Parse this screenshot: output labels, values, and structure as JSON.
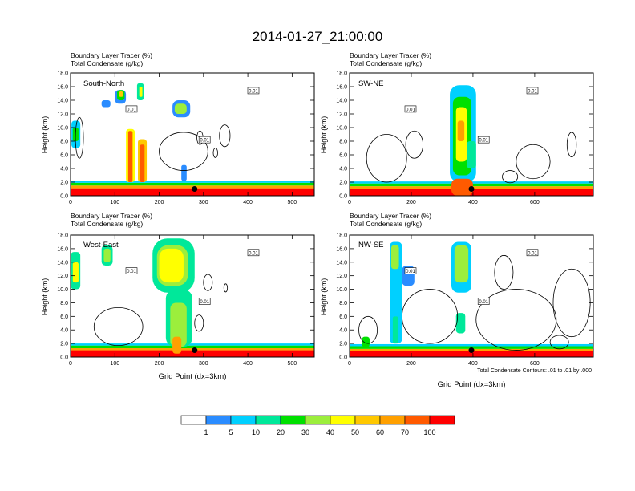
{
  "title": "2014-01-27_21:00:00",
  "colors": {
    "levels": [
      "#ffffff",
      "#2a8cff",
      "#00d0ff",
      "#00e89a",
      "#00e000",
      "#9cee3c",
      "#ffff00",
      "#ffc800",
      "#ffa000",
      "#ff5a00",
      "#ff0000"
    ]
  },
  "chart_data": [
    {
      "type": "heatmap",
      "name": "South-North",
      "label_line1": "Boundary Layer Tracer   (%)",
      "label_line2": "Total Condensate   (g/kg)",
      "ylabel": "Height (km)",
      "xlabel": "",
      "xlim": [
        0,
        550
      ],
      "ylim": [
        0,
        18
      ],
      "xticks": [
        0,
        100,
        200,
        300,
        400,
        500
      ],
      "yticks": [
        0,
        2,
        4,
        6,
        8,
        10,
        12,
        14,
        16,
        18
      ],
      "contour_label": "0.01",
      "marker": {
        "x": 280,
        "y": 1
      },
      "blobs": [
        {
          "x": [
            0,
            550
          ],
          "y": [
            0,
            1.1
          ],
          "level": 10
        },
        {
          "x": [
            0,
            550
          ],
          "y": [
            1.1,
            1.5
          ],
          "level": 8
        },
        {
          "x": [
            0,
            550
          ],
          "y": [
            1.5,
            1.9
          ],
          "level": 4
        },
        {
          "x": [
            0,
            550
          ],
          "y": [
            1.9,
            2.2
          ],
          "level": 2
        },
        {
          "x": [
            2,
            22
          ],
          "y": [
            7,
            11
          ],
          "level": 2
        },
        {
          "x": [
            5,
            18
          ],
          "y": [
            8,
            10
          ],
          "level": 4
        },
        {
          "x": [
            100,
            125
          ],
          "y": [
            13.5,
            15.5
          ],
          "level": 1
        },
        {
          "x": [
            105,
            122
          ],
          "y": [
            14,
            15.5
          ],
          "level": 4
        },
        {
          "x": [
            110,
            118
          ],
          "y": [
            14.5,
            15.3
          ],
          "level": 7
        },
        {
          "x": [
            150,
            165
          ],
          "y": [
            14,
            16.5
          ],
          "level": 3
        },
        {
          "x": [
            155,
            162
          ],
          "y": [
            14.5,
            16
          ],
          "level": 6
        },
        {
          "x": [
            70,
            90
          ],
          "y": [
            13,
            14
          ],
          "level": 1
        },
        {
          "x": [
            125,
            145
          ],
          "y": [
            2,
            9.8
          ],
          "level": 6
        },
        {
          "x": [
            130,
            140
          ],
          "y": [
            2,
            9.5
          ],
          "level": 9
        },
        {
          "x": [
            152,
            172
          ],
          "y": [
            2,
            8.3
          ],
          "level": 7
        },
        {
          "x": [
            157,
            167
          ],
          "y": [
            2,
            7.5
          ],
          "level": 9
        },
        {
          "x": [
            230,
            270
          ],
          "y": [
            11.5,
            14
          ],
          "level": 1
        },
        {
          "x": [
            235,
            262
          ],
          "y": [
            12,
            13.5
          ],
          "level": 5
        },
        {
          "x": [
            250,
            262
          ],
          "y": [
            2.2,
            4.5
          ],
          "level": 1
        }
      ],
      "outlines": [
        {
          "cx": 255,
          "cy": 6.5,
          "rx": 55,
          "ry": 2.8
        },
        {
          "cx": 348,
          "cy": 8.8,
          "rx": 12,
          "ry": 1.6
        },
        {
          "cx": 292,
          "cy": 8.5,
          "rx": 7,
          "ry": 1.0
        },
        {
          "cx": 327,
          "cy": 6.3,
          "rx": 5,
          "ry": 0.7
        },
        {
          "cx": 20,
          "cy": 8.5,
          "rx": 9,
          "ry": 3.0
        }
      ]
    },
    {
      "type": "heatmap",
      "name": "SW-NE",
      "label_line1": "Boundary Layer Tracer   (%)",
      "label_line2": "Total Condensate   (g/kg)",
      "ylabel": "Height (km)",
      "xlabel": "",
      "xlim": [
        0,
        790
      ],
      "ylim": [
        0,
        18
      ],
      "xticks": [
        0,
        200,
        400,
        600
      ],
      "yticks": [
        0,
        2,
        4,
        6,
        8,
        10,
        12,
        14,
        16,
        18
      ],
      "contour_label": "0.01",
      "marker": {
        "x": 395,
        "y": 1
      },
      "blobs": [
        {
          "x": [
            0,
            790
          ],
          "y": [
            0,
            1.0
          ],
          "level": 10
        },
        {
          "x": [
            0,
            790
          ],
          "y": [
            1.0,
            1.4
          ],
          "level": 8
        },
        {
          "x": [
            0,
            790
          ],
          "y": [
            1.4,
            1.8
          ],
          "level": 4
        },
        {
          "x": [
            0,
            790
          ],
          "y": [
            1.8,
            2.1
          ],
          "level": 2
        },
        {
          "x": [
            325,
            410
          ],
          "y": [
            2,
            16.2
          ],
          "level": 2
        },
        {
          "x": [
            335,
            395
          ],
          "y": [
            3,
            14.5
          ],
          "level": 4
        },
        {
          "x": [
            345,
            380
          ],
          "y": [
            5,
            13
          ],
          "level": 6
        },
        {
          "x": [
            350,
            372
          ],
          "y": [
            8,
            11
          ],
          "level": 8
        },
        {
          "x": [
            330,
            400
          ],
          "y": [
            0,
            2.5
          ],
          "level": 9
        },
        {
          "x": [
            380,
            410
          ],
          "y": [
            4,
            8
          ],
          "level": 3
        }
      ],
      "outlines": [
        {
          "cx": 120,
          "cy": 5.5,
          "rx": 65,
          "ry": 3.5
        },
        {
          "cx": 210,
          "cy": 7.5,
          "rx": 28,
          "ry": 2.0
        },
        {
          "cx": 595,
          "cy": 5.0,
          "rx": 55,
          "ry": 2.5
        },
        {
          "cx": 720,
          "cy": 7.5,
          "rx": 15,
          "ry": 1.8
        },
        {
          "cx": 520,
          "cy": 2.8,
          "rx": 25,
          "ry": 0.9
        }
      ]
    },
    {
      "type": "heatmap",
      "name": "West-East",
      "label_line1": "Boundary Layer Tracer   (%)",
      "label_line2": "Total Condensate   (g/kg)",
      "ylabel": "Height (km)",
      "xlabel": "Grid Point (dx=3km)",
      "xlim": [
        0,
        550
      ],
      "ylim": [
        0,
        18
      ],
      "xticks": [
        0,
        100,
        200,
        300,
        400,
        500
      ],
      "yticks": [
        0,
        2,
        4,
        6,
        8,
        10,
        12,
        14,
        16,
        18
      ],
      "contour_label": "0.01",
      "marker": {
        "x": 280,
        "y": 1
      },
      "blobs": [
        {
          "x": [
            0,
            550
          ],
          "y": [
            0,
            1.0
          ],
          "level": 10
        },
        {
          "x": [
            0,
            550
          ],
          "y": [
            1.0,
            1.3
          ],
          "level": 8
        },
        {
          "x": [
            0,
            550
          ],
          "y": [
            1.3,
            1.7
          ],
          "level": 4
        },
        {
          "x": [
            0,
            550
          ],
          "y": [
            1.7,
            2.0
          ],
          "level": 2
        },
        {
          "x": [
            0,
            22
          ],
          "y": [
            10,
            15.5
          ],
          "level": 3
        },
        {
          "x": [
            5,
            18
          ],
          "y": [
            11,
            14
          ],
          "level": 6
        },
        {
          "x": [
            70,
            95
          ],
          "y": [
            13.5,
            16.5
          ],
          "level": 3
        },
        {
          "x": [
            75,
            90
          ],
          "y": [
            14,
            16
          ],
          "level": 5
        },
        {
          "x": [
            185,
            280
          ],
          "y": [
            9.5,
            17.5
          ],
          "level": 3
        },
        {
          "x": [
            195,
            265
          ],
          "y": [
            10.5,
            16.5
          ],
          "level": 5
        },
        {
          "x": [
            200,
            255
          ],
          "y": [
            11,
            16
          ],
          "level": 6
        },
        {
          "x": [
            215,
            275
          ],
          "y": [
            1.5,
            10
          ],
          "level": 3
        },
        {
          "x": [
            225,
            262
          ],
          "y": [
            1.5,
            8
          ],
          "level": 5
        },
        {
          "x": [
            230,
            250
          ],
          "y": [
            0.5,
            3
          ],
          "level": 8
        }
      ],
      "outlines": [
        {
          "cx": 108,
          "cy": 4.5,
          "rx": 55,
          "ry": 2.8
        },
        {
          "cx": 310,
          "cy": 11.0,
          "rx": 10,
          "ry": 1.2
        },
        {
          "cx": 350,
          "cy": 10.2,
          "rx": 4,
          "ry": 0.6
        },
        {
          "cx": 290,
          "cy": 5.0,
          "rx": 10,
          "ry": 1.2
        }
      ]
    },
    {
      "type": "heatmap",
      "name": "NW-SE",
      "label_line1": "Boundary Layer Tracer   (%)",
      "label_line2": "Total Condensate   (g/kg)",
      "ylabel": "Height (km)",
      "xlabel": "Grid Point (dx=3km)",
      "xlim": [
        0,
        790
      ],
      "ylim": [
        0,
        18
      ],
      "xticks": [
        0,
        200,
        400,
        600
      ],
      "yticks": [
        0,
        2,
        4,
        6,
        8,
        10,
        12,
        14,
        16,
        18
      ],
      "contour_label": "0.01",
      "contour_note": "Total Condensate Contours: .01 to .01 by .000",
      "marker": {
        "x": 395,
        "y": 1
      },
      "blobs": [
        {
          "x": [
            0,
            790
          ],
          "y": [
            0,
            0.9
          ],
          "level": 10
        },
        {
          "x": [
            0,
            790
          ],
          "y": [
            0.9,
            1.2
          ],
          "level": 8
        },
        {
          "x": [
            0,
            790
          ],
          "y": [
            1.2,
            1.6
          ],
          "level": 4
        },
        {
          "x": [
            0,
            790
          ],
          "y": [
            1.6,
            1.9
          ],
          "level": 2
        },
        {
          "x": [
            130,
            170
          ],
          "y": [
            2,
            17
          ],
          "level": 2
        },
        {
          "x": [
            135,
            160
          ],
          "y": [
            13,
            16.5
          ],
          "level": 5
        },
        {
          "x": [
            140,
            158
          ],
          "y": [
            2,
            6
          ],
          "level": 3
        },
        {
          "x": [
            170,
            210
          ],
          "y": [
            10.5,
            13.5
          ],
          "level": 1
        },
        {
          "x": [
            330,
            395
          ],
          "y": [
            9.5,
            17
          ],
          "level": 2
        },
        {
          "x": [
            340,
            385
          ],
          "y": [
            11,
            16.5
          ],
          "level": 5
        },
        {
          "x": [
            345,
            375
          ],
          "y": [
            3.5,
            6.5
          ],
          "level": 3
        },
        {
          "x": [
            40,
            65
          ],
          "y": [
            1.5,
            3
          ],
          "level": 4
        }
      ],
      "outlines": [
        {
          "cx": 260,
          "cy": 6.0,
          "rx": 90,
          "ry": 4.0
        },
        {
          "cx": 540,
          "cy": 5.5,
          "rx": 130,
          "ry": 4.5
        },
        {
          "cx": 720,
          "cy": 8.0,
          "rx": 60,
          "ry": 5.0
        },
        {
          "cx": 500,
          "cy": 12.5,
          "rx": 30,
          "ry": 2.5
        },
        {
          "cx": 60,
          "cy": 4.0,
          "rx": 30,
          "ry": 2.0
        },
        {
          "cx": 680,
          "cy": 2.2,
          "rx": 30,
          "ry": 1.0
        }
      ]
    }
  ],
  "colorbar": {
    "labels": [
      "1",
      "5",
      "10",
      "20",
      "30",
      "40",
      "50",
      "60",
      "70",
      "100"
    ]
  }
}
